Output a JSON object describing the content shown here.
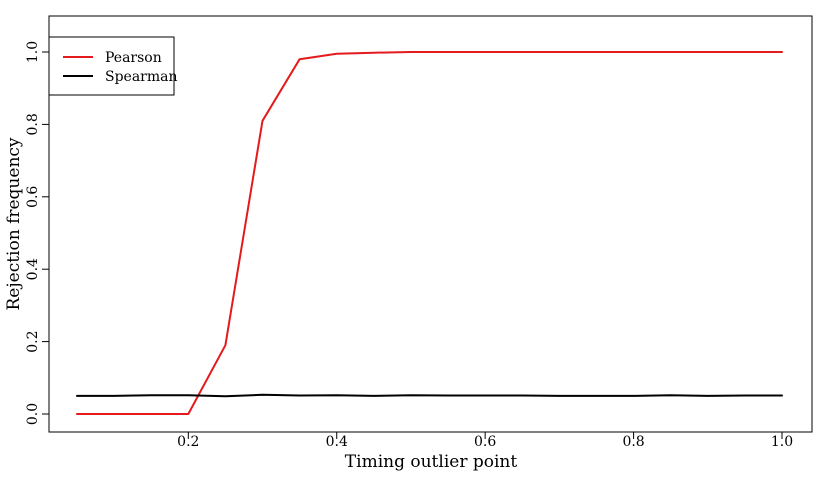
{
  "chart_data": {
    "type": "line",
    "xlabel": "Timing outlier point",
    "ylabel": "Rejection frequency",
    "xlim": [
      0.05,
      1.0
    ],
    "ylim": [
      0.0,
      1.0
    ],
    "xticks": [
      0.2,
      0.4,
      0.6,
      0.8,
      1.0
    ],
    "xtick_labels": [
      "0.2",
      "0.4",
      "0.6",
      "0.8",
      "1.0"
    ],
    "yticks": [
      0.0,
      0.2,
      0.4,
      0.6,
      0.8,
      1.0
    ],
    "ytick_labels": [
      "0.0",
      "0.2",
      "0.4",
      "0.6",
      "0.8",
      "1.0"
    ],
    "grid": false,
    "legend_position": "top-left",
    "x": [
      0.05,
      0.1,
      0.15,
      0.2,
      0.25,
      0.3,
      0.35,
      0.4,
      0.45,
      0.5,
      0.55,
      0.6,
      0.65,
      0.7,
      0.75,
      0.8,
      0.85,
      0.9,
      0.95,
      1.0
    ],
    "series": [
      {
        "name": "Pearson",
        "color": "#e41a1c",
        "values": [
          0.0,
          0.0,
          0.0,
          0.0,
          0.19,
          0.81,
          0.98,
          0.995,
          0.998,
          1.0,
          1.0,
          1.0,
          1.0,
          1.0,
          1.0,
          1.0,
          1.0,
          1.0,
          1.0,
          1.0
        ]
      },
      {
        "name": "Spearman",
        "color": "#000000",
        "values": [
          0.05,
          0.05,
          0.052,
          0.052,
          0.049,
          0.053,
          0.051,
          0.052,
          0.05,
          0.052,
          0.051,
          0.051,
          0.051,
          0.05,
          0.05,
          0.05,
          0.052,
          0.05,
          0.051,
          0.051
        ]
      }
    ]
  }
}
